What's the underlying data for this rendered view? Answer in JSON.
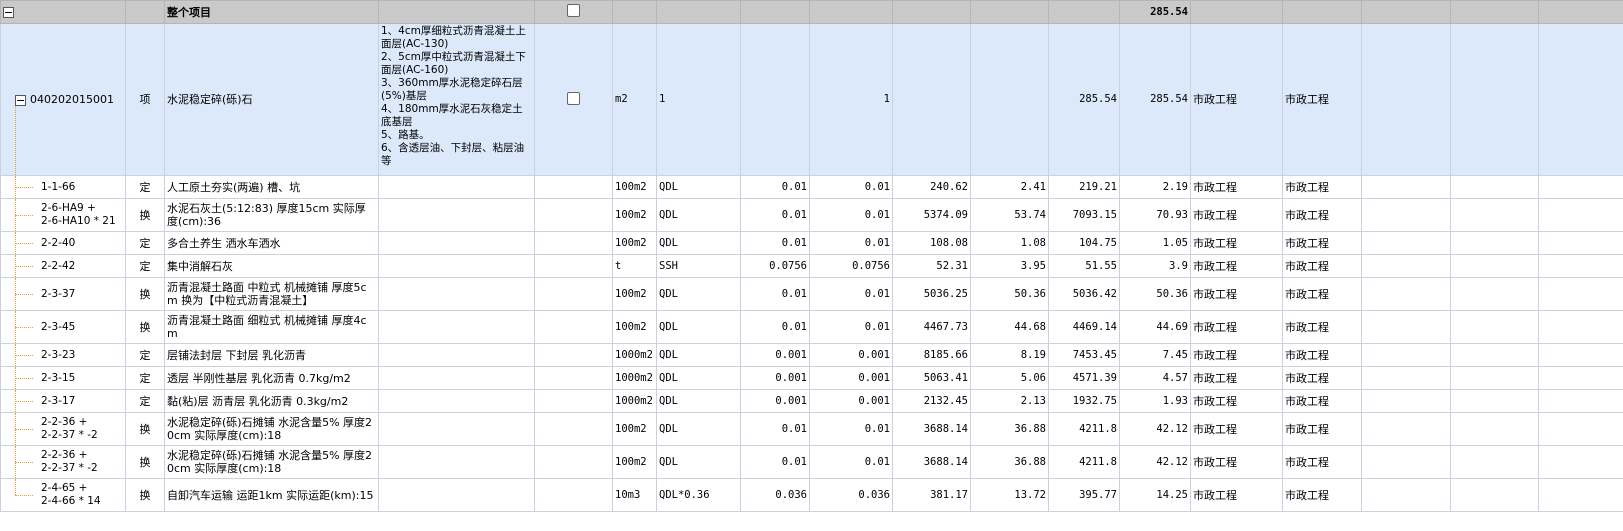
{
  "root": {
    "title": "整个项目",
    "total": "285.54"
  },
  "item": {
    "code": "040202015001",
    "type": "项",
    "name": "水泥稳定碎(砾)石",
    "features": "1、4cm厚细粒式沥青混凝土上面层(AC-130)\n2、5cm厚中粒式沥青混凝土下面层(AC-160)\n3、360mm厚水泥稳定碎石层(5%)基层\n4、180mm厚水泥石灰稳定土底基层\n5、路基。\n6、含透层油、下封层、粘层油等",
    "unit": "m2",
    "qty_expr": "1",
    "qty": "1",
    "unit_price": "285.54",
    "total": "285.54",
    "category1": "市政工程",
    "category2": "市政工程"
  },
  "rows": [
    {
      "code": "1-1-66",
      "type": "定",
      "name": "人工原土夯实(两遍) 槽、坑",
      "unit": "100m2",
      "expr": "QDL",
      "qty_expr_val": "0.01",
      "qty": "0.01",
      "price": "240.62",
      "total": "2.41",
      "price2": "219.21",
      "total2": "2.19",
      "cat1": "市政工程",
      "cat2": "市政工程"
    },
    {
      "code": "2-6-HA9 +\n2-6-HA10 * 21",
      "type": "换",
      "name": "水泥石灰土(5:12:83) 厚度15cm  实际厚度(cm):36",
      "unit": "100m2",
      "expr": "QDL",
      "qty_expr_val": "0.01",
      "qty": "0.01",
      "price": "5374.09",
      "total": "53.74",
      "price2": "7093.15",
      "total2": "70.93",
      "cat1": "市政工程",
      "cat2": "市政工程"
    },
    {
      "code": "2-2-40",
      "type": "定",
      "name": "多合土养生 洒水车洒水",
      "unit": "100m2",
      "expr": "QDL",
      "qty_expr_val": "0.01",
      "qty": "0.01",
      "price": "108.08",
      "total": "1.08",
      "price2": "104.75",
      "total2": "1.05",
      "cat1": "市政工程",
      "cat2": "市政工程"
    },
    {
      "code": "2-2-42",
      "type": "定",
      "name": "集中消解石灰",
      "unit": "t",
      "expr": "SSH",
      "qty_expr_val": "0.0756",
      "qty": "0.0756",
      "price": "52.31",
      "total": "3.95",
      "price2": "51.55",
      "total2": "3.9",
      "cat1": "市政工程",
      "cat2": "市政工程"
    },
    {
      "code": "2-3-37",
      "type": "换",
      "name": "沥青混凝土路面 中粒式 机械摊铺 厚度5cm  换为【中粒式沥青混凝土】",
      "unit": "100m2",
      "expr": "QDL",
      "qty_expr_val": "0.01",
      "qty": "0.01",
      "price": "5036.25",
      "total": "50.36",
      "price2": "5036.42",
      "total2": "50.36",
      "cat1": "市政工程",
      "cat2": "市政工程"
    },
    {
      "code": "2-3-45",
      "type": "换",
      "name": "沥青混凝土路面 细粒式 机械摊铺 厚度4cm",
      "unit": "100m2",
      "expr": "QDL",
      "qty_expr_val": "0.01",
      "qty": "0.01",
      "price": "4467.73",
      "total": "44.68",
      "price2": "4469.14",
      "total2": "44.69",
      "cat1": "市政工程",
      "cat2": "市政工程"
    },
    {
      "code": "2-3-23",
      "type": "定",
      "name": "层铺法封层 下封层 乳化沥青",
      "unit": "1000m2",
      "expr": "QDL",
      "qty_expr_val": "0.001",
      "qty": "0.001",
      "price": "8185.66",
      "total": "8.19",
      "price2": "7453.45",
      "total2": "7.45",
      "cat1": "市政工程",
      "cat2": "市政工程"
    },
    {
      "code": "2-3-15",
      "type": "定",
      "name": "透层 半刚性基层 乳化沥青 0.7kg/m2",
      "unit": "1000m2",
      "expr": "QDL",
      "qty_expr_val": "0.001",
      "qty": "0.001",
      "price": "5063.41",
      "total": "5.06",
      "price2": "4571.39",
      "total2": "4.57",
      "cat1": "市政工程",
      "cat2": "市政工程"
    },
    {
      "code": "2-3-17",
      "type": "定",
      "name": "黏(粘)层 沥青层 乳化沥青 0.3kg/m2",
      "unit": "1000m2",
      "expr": "QDL",
      "qty_expr_val": "0.001",
      "qty": "0.001",
      "price": "2132.45",
      "total": "2.13",
      "price2": "1932.75",
      "total2": "1.93",
      "cat1": "市政工程",
      "cat2": "市政工程"
    },
    {
      "code": "2-2-36 +\n2-2-37 * -2",
      "type": "换",
      "name": "水泥稳定碎(砾)石摊铺 水泥含量5% 厚度20cm  实际厚度(cm):18",
      "unit": "100m2",
      "expr": "QDL",
      "qty_expr_val": "0.01",
      "qty": "0.01",
      "price": "3688.14",
      "total": "36.88",
      "price2": "4211.8",
      "total2": "42.12",
      "cat1": "市政工程",
      "cat2": "市政工程"
    },
    {
      "code": "2-2-36 +\n2-2-37 * -2",
      "type": "换",
      "name": "水泥稳定碎(砾)石摊铺 水泥含量5% 厚度20cm  实际厚度(cm):18",
      "unit": "100m2",
      "expr": "QDL",
      "qty_expr_val": "0.01",
      "qty": "0.01",
      "price": "3688.14",
      "total": "36.88",
      "price2": "4211.8",
      "total2": "42.12",
      "cat1": "市政工程",
      "cat2": "市政工程"
    },
    {
      "code": "2-4-65 +\n2-4-66 * 14",
      "type": "换",
      "name": "自卸汽车运输 运距1km  实际运距(km):15",
      "unit": "10m3",
      "expr": "QDL*0.36",
      "qty_expr_val": "0.036",
      "qty": "0.036",
      "price": "381.17",
      "total": "13.72",
      "price2": "395.77",
      "total2": "14.25",
      "cat1": "市政工程",
      "cat2": "市政工程"
    }
  ],
  "colors": {
    "header_bg": "#c9c9c9",
    "item_bg": "#dbe9fb",
    "selected_bg": "#b3d3f7",
    "tree_line": "#e0a030"
  }
}
